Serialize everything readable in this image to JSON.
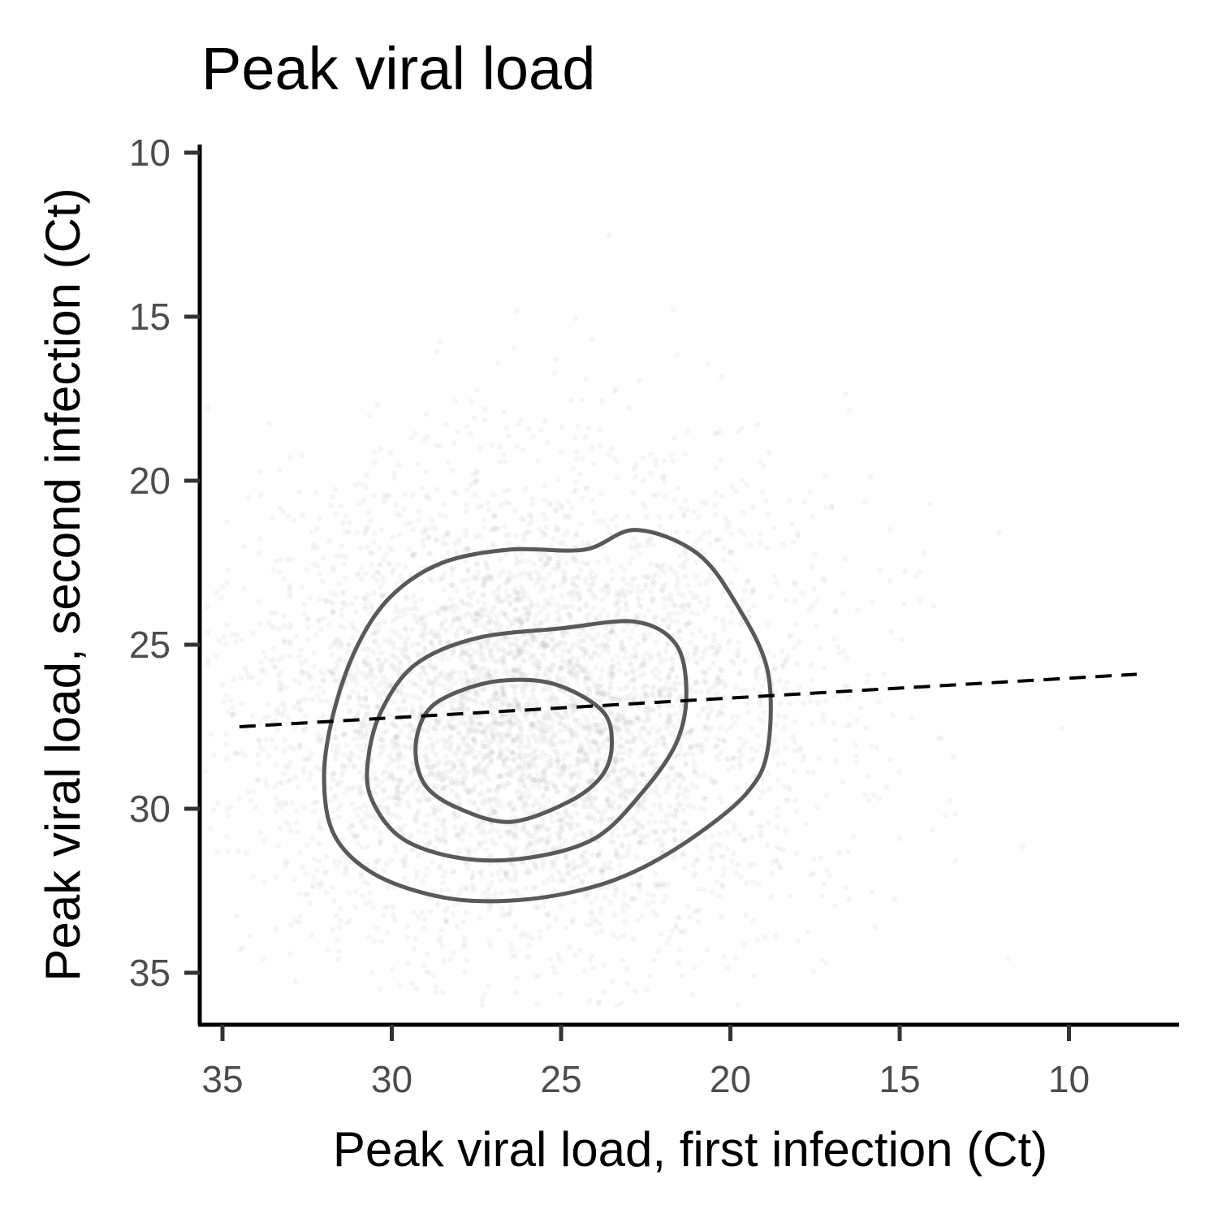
{
  "chart_data": {
    "type": "scatter",
    "title": "Peak viral load",
    "xlabel": "Peak viral load, first infection (Ct)",
    "ylabel": "Peak viral load, second infection (Ct)",
    "x_reversed": true,
    "y_reversed": true,
    "xlim": [
      35.7,
      6.5
    ],
    "ylim": [
      10,
      36.5
    ],
    "x_ticks": [
      35,
      30,
      25,
      20,
      15,
      10
    ],
    "y_ticks": [
      10,
      15,
      20,
      25,
      30,
      35
    ],
    "grid": false,
    "legend": "none",
    "scatter_cloud": {
      "description_of_values": "approximate bivariate distribution of points",
      "x_mean": 26.0,
      "x_sd": 4.2,
      "y_mean": 27.0,
      "y_sd": 3.6,
      "count": 5000,
      "color": "#999999"
    },
    "trend_line": {
      "style": "dashed",
      "points": [
        [
          34.5,
          27.5
        ],
        [
          8,
          25.9
        ]
      ]
    },
    "contours": [
      {
        "level": "outer",
        "points": [
          [
            32.0,
            29
          ],
          [
            31.7,
            27
          ],
          [
            31.0,
            25
          ],
          [
            30.0,
            23.5
          ],
          [
            28.5,
            22.5
          ],
          [
            26.5,
            22.1
          ],
          [
            24.3,
            22.1
          ],
          [
            22.8,
            21.5
          ],
          [
            21.0,
            22.2
          ],
          [
            19.8,
            23.8
          ],
          [
            18.9,
            25.8
          ],
          [
            18.9,
            28.2
          ],
          [
            19.5,
            29.5
          ],
          [
            21.0,
            30.8
          ],
          [
            22.8,
            31.9
          ],
          [
            24.5,
            32.5
          ],
          [
            26.5,
            32.8
          ],
          [
            28.5,
            32.7
          ],
          [
            30.5,
            32.0
          ],
          [
            31.7,
            30.8
          ]
        ]
      },
      {
        "level": "middle",
        "points": [
          [
            30.7,
            28.5
          ],
          [
            30.3,
            27.0
          ],
          [
            29.3,
            25.6
          ],
          [
            27.5,
            24.8
          ],
          [
            25.0,
            24.5
          ],
          [
            22.8,
            24.3
          ],
          [
            21.6,
            25.0
          ],
          [
            21.3,
            26.5
          ],
          [
            21.6,
            28.0
          ],
          [
            22.6,
            29.5
          ],
          [
            24.0,
            30.9
          ],
          [
            26.0,
            31.5
          ],
          [
            28.0,
            31.5
          ],
          [
            29.7,
            30.9
          ],
          [
            30.6,
            29.7
          ]
        ]
      },
      {
        "level": "inner",
        "points": [
          [
            29.3,
            28.2
          ],
          [
            29.0,
            27.1
          ],
          [
            28.2,
            26.5
          ],
          [
            26.8,
            26.1
          ],
          [
            25.2,
            26.2
          ],
          [
            23.8,
            27.0
          ],
          [
            23.5,
            28.0
          ],
          [
            23.8,
            29.0
          ],
          [
            24.8,
            29.8
          ],
          [
            26.5,
            30.4
          ],
          [
            28.0,
            30.0
          ],
          [
            29.0,
            29.3
          ]
        ]
      }
    ]
  }
}
